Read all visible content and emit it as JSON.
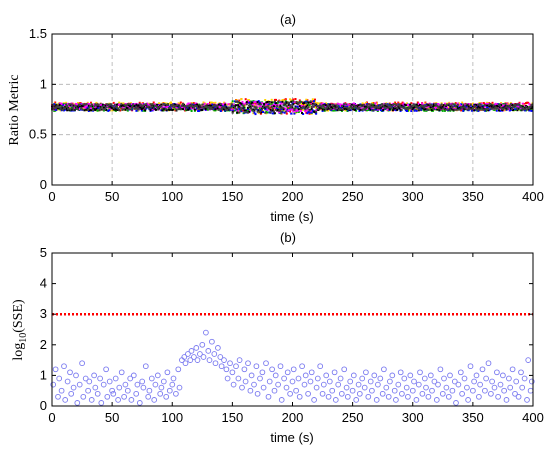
{
  "chart_data": [
    {
      "type": "scatter",
      "title": "(a)",
      "xlabel": "time (s)",
      "ylabel": "Ratio Metric",
      "xlim": [
        0,
        400
      ],
      "ylim": [
        0,
        1.5
      ],
      "xticks": [
        "0",
        "50",
        "100",
        "150",
        "200",
        "250",
        "300",
        "350",
        "400"
      ],
      "yticks": [
        "0",
        "0.5",
        "1",
        "1.5"
      ],
      "grid": true,
      "series": [
        {
          "color": "#ff0000",
          "band_center": 0.78,
          "band_halfwidth": 0.04
        },
        {
          "color": "#ffd700",
          "band_center": 0.78,
          "band_halfwidth": 0.04
        },
        {
          "color": "#00aa00",
          "band_center": 0.77,
          "band_halfwidth": 0.035
        },
        {
          "color": "#0000ff",
          "band_center": 0.77,
          "band_halfwidth": 0.035
        },
        {
          "color": "#ff00ff",
          "band_center": 0.78,
          "band_halfwidth": 0.03
        },
        {
          "color": "#000000",
          "band_center": 0.77,
          "band_halfwidth": 0.03
        },
        {
          "color": "#404040",
          "band_center": 0.775,
          "band_halfwidth": 0.03
        }
      ],
      "disturbance_window": [
        150,
        220
      ]
    },
    {
      "type": "scatter",
      "title": "(b)",
      "xlabel": "time (s)",
      "ylabel_main": "log",
      "ylabel_sub": "10",
      "ylabel_tail": "(SSE)",
      "xlim": [
        0,
        400
      ],
      "ylim": [
        0,
        5
      ],
      "xticks": [
        "0",
        "50",
        "100",
        "150",
        "200",
        "250",
        "300",
        "350",
        "400"
      ],
      "yticks": [
        "0",
        "1",
        "2",
        "3",
        "4",
        "5"
      ],
      "grid": false,
      "marker_color": "#7b7bf0",
      "threshold": {
        "y": 3,
        "color": "#ff0000"
      },
      "points": [
        [
          1,
          0.7
        ],
        [
          3,
          1.2
        ],
        [
          5,
          0.3
        ],
        [
          6,
          0.9
        ],
        [
          8,
          0.5
        ],
        [
          10,
          1.3
        ],
        [
          11,
          0.2
        ],
        [
          13,
          0.8
        ],
        [
          15,
          1.1
        ],
        [
          16,
          0.4
        ],
        [
          18,
          0.6
        ],
        [
          20,
          1.0
        ],
        [
          21,
          0.1
        ],
        [
          23,
          0.7
        ],
        [
          25,
          1.4
        ],
        [
          26,
          0.3
        ],
        [
          28,
          0.9
        ],
        [
          30,
          0.5
        ],
        [
          31,
          0.8
        ],
        [
          33,
          0.2
        ],
        [
          35,
          1.0
        ],
        [
          36,
          0.6
        ],
        [
          38,
          0.4
        ],
        [
          40,
          0.9
        ],
        [
          41,
          0.1
        ],
        [
          43,
          0.7
        ],
        [
          45,
          1.2
        ],
        [
          46,
          0.3
        ],
        [
          48,
          0.8
        ],
        [
          50,
          0.5
        ],
        [
          51,
          0.4
        ],
        [
          53,
          0.9
        ],
        [
          55,
          0.2
        ],
        [
          56,
          0.6
        ],
        [
          58,
          1.1
        ],
        [
          60,
          0.3
        ],
        [
          61,
          0.7
        ],
        [
          63,
          0.5
        ],
        [
          65,
          0.9
        ],
        [
          66,
          0.2
        ],
        [
          68,
          1.0
        ],
        [
          70,
          0.4
        ],
        [
          71,
          0.7
        ],
        [
          73,
          0.1
        ],
        [
          75,
          0.8
        ],
        [
          76,
          0.6
        ],
        [
          78,
          1.3
        ],
        [
          80,
          0.3
        ],
        [
          81,
          0.5
        ],
        [
          83,
          0.9
        ],
        [
          85,
          0.2
        ],
        [
          86,
          0.7
        ],
        [
          88,
          1.0
        ],
        [
          90,
          0.4
        ],
        [
          91,
          0.6
        ],
        [
          93,
          0.8
        ],
        [
          95,
          0.3
        ],
        [
          96,
          1.1
        ],
        [
          98,
          0.5
        ],
        [
          100,
          0.7
        ],
        [
          101,
          0.9
        ],
        [
          103,
          0.4
        ],
        [
          105,
          1.2
        ],
        [
          106,
          0.6
        ],
        [
          108,
          1.5
        ],
        [
          110,
          1.6
        ],
        [
          111,
          1.4
        ],
        [
          113,
          1.7
        ],
        [
          115,
          1.5
        ],
        [
          116,
          1.8
        ],
        [
          118,
          1.6
        ],
        [
          120,
          1.9
        ],
        [
          121,
          1.5
        ],
        [
          123,
          1.7
        ],
        [
          125,
          2.0
        ],
        [
          126,
          1.6
        ],
        [
          128,
          2.4
        ],
        [
          130,
          1.8
        ],
        [
          131,
          1.5
        ],
        [
          133,
          2.1
        ],
        [
          135,
          1.7
        ],
        [
          136,
          1.4
        ],
        [
          138,
          1.9
        ],
        [
          140,
          1.6
        ],
        [
          141,
          1.3
        ],
        [
          143,
          1.5
        ],
        [
          145,
          1.2
        ],
        [
          146,
          0.9
        ],
        [
          148,
          1.4
        ],
        [
          150,
          1.1
        ],
        [
          151,
          0.7
        ],
        [
          153,
          1.3
        ],
        [
          155,
          0.9
        ],
        [
          156,
          1.5
        ],
        [
          158,
          0.6
        ],
        [
          160,
          1.2
        ],
        [
          161,
          0.8
        ],
        [
          163,
          1.4
        ],
        [
          165,
          0.5
        ],
        [
          166,
          1.0
        ],
        [
          168,
          0.7
        ],
        [
          170,
          1.3
        ],
        [
          171,
          0.4
        ],
        [
          173,
          0.9
        ],
        [
          175,
          1.1
        ],
        [
          176,
          0.6
        ],
        [
          178,
          1.4
        ],
        [
          180,
          0.3
        ],
        [
          181,
          0.8
        ],
        [
          183,
          1.2
        ],
        [
          185,
          0.5
        ],
        [
          186,
          1.0
        ],
        [
          188,
          0.7
        ],
        [
          190,
          1.3
        ],
        [
          191,
          0.2
        ],
        [
          193,
          0.9
        ],
        [
          195,
          0.6
        ],
        [
          196,
          1.1
        ],
        [
          198,
          0.4
        ],
        [
          200,
          0.8
        ],
        [
          201,
          1.2
        ],
        [
          203,
          0.5
        ],
        [
          205,
          0.9
        ],
        [
          206,
          0.3
        ],
        [
          208,
          1.3
        ],
        [
          210,
          0.7
        ],
        [
          211,
          1.0
        ],
        [
          213,
          0.4
        ],
        [
          215,
          0.8
        ],
        [
          216,
          1.1
        ],
        [
          218,
          0.2
        ],
        [
          220,
          0.6
        ],
        [
          221,
          0.9
        ],
        [
          223,
          1.3
        ],
        [
          225,
          0.4
        ],
        [
          226,
          0.7
        ],
        [
          228,
          1.0
        ],
        [
          230,
          0.3
        ],
        [
          231,
          0.8
        ],
        [
          233,
          0.5
        ],
        [
          235,
          1.1
        ],
        [
          236,
          0.2
        ],
        [
          238,
          0.7
        ],
        [
          240,
          0.9
        ],
        [
          241,
          0.4
        ],
        [
          243,
          1.2
        ],
        [
          245,
          0.6
        ],
        [
          246,
          0.3
        ],
        [
          248,
          0.8
        ],
        [
          250,
          0.5
        ],
        [
          251,
          1.0
        ],
        [
          253,
          0.2
        ],
        [
          255,
          0.7
        ],
        [
          256,
          0.4
        ],
        [
          258,
          0.9
        ],
        [
          260,
          0.6
        ],
        [
          261,
          1.1
        ],
        [
          263,
          0.3
        ],
        [
          265,
          0.8
        ],
        [
          266,
          0.5
        ],
        [
          268,
          1.0
        ],
        [
          270,
          0.2
        ],
        [
          271,
          0.7
        ],
        [
          273,
          0.9
        ],
        [
          275,
          0.4
        ],
        [
          276,
          1.2
        ],
        [
          278,
          0.6
        ],
        [
          280,
          0.3
        ],
        [
          281,
          0.8
        ],
        [
          283,
          1.0
        ],
        [
          285,
          0.5
        ],
        [
          286,
          0.2
        ],
        [
          288,
          0.7
        ],
        [
          290,
          1.1
        ],
        [
          291,
          0.4
        ],
        [
          293,
          0.9
        ],
        [
          295,
          0.6
        ],
        [
          296,
          0.3
        ],
        [
          298,
          1.0
        ],
        [
          300,
          0.5
        ],
        [
          301,
          0.8
        ],
        [
          303,
          0.2
        ],
        [
          305,
          0.7
        ],
        [
          306,
          1.1
        ],
        [
          308,
          0.4
        ],
        [
          310,
          0.9
        ],
        [
          311,
          0.6
        ],
        [
          313,
          0.3
        ],
        [
          315,
          1.0
        ],
        [
          316,
          0.5
        ],
        [
          318,
          0.8
        ],
        [
          320,
          0.2
        ],
        [
          321,
          0.7
        ],
        [
          323,
          1.2
        ],
        [
          325,
          0.4
        ],
        [
          326,
          0.9
        ],
        [
          328,
          0.6
        ],
        [
          330,
          0.3
        ],
        [
          331,
          1.0
        ],
        [
          333,
          0.5
        ],
        [
          335,
          0.8
        ],
        [
          336,
          0.1
        ],
        [
          338,
          0.7
        ],
        [
          340,
          1.1
        ],
        [
          341,
          0.4
        ],
        [
          343,
          0.9
        ],
        [
          345,
          0.6
        ],
        [
          346,
          0.2
        ],
        [
          348,
          1.3
        ],
        [
          350,
          0.5
        ],
        [
          351,
          0.8
        ],
        [
          353,
          1.0
        ],
        [
          355,
          0.3
        ],
        [
          356,
          0.7
        ],
        [
          358,
          1.2
        ],
        [
          360,
          0.5
        ],
        [
          361,
          0.9
        ],
        [
          363,
          1.4
        ],
        [
          365,
          0.4
        ],
        [
          366,
          0.8
        ],
        [
          368,
          0.6
        ],
        [
          370,
          1.1
        ],
        [
          371,
          0.3
        ],
        [
          373,
          0.7
        ],
        [
          375,
          1.0
        ],
        [
          376,
          0.5
        ],
        [
          378,
          0.2
        ],
        [
          380,
          0.9
        ],
        [
          381,
          0.6
        ],
        [
          383,
          1.2
        ],
        [
          385,
          0.4
        ],
        [
          386,
          0.8
        ],
        [
          388,
          0.3
        ],
        [
          390,
          1.1
        ],
        [
          391,
          0.6
        ],
        [
          393,
          0.9
        ],
        [
          395,
          0.2
        ],
        [
          396,
          1.5
        ],
        [
          398,
          0.5
        ],
        [
          399,
          0.8
        ]
      ]
    }
  ]
}
